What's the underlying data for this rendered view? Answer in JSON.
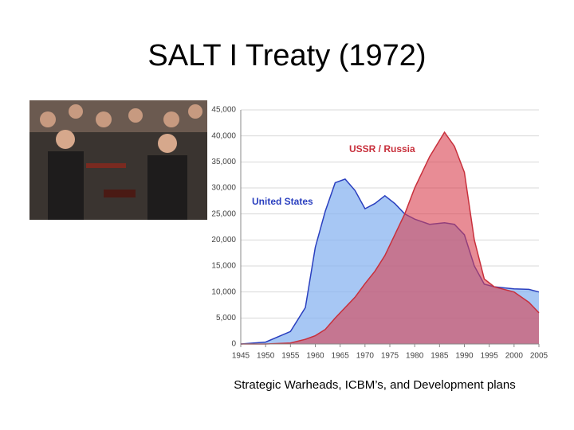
{
  "chart_data": {
    "type": "area",
    "title": "SALT I Treaty (1972)",
    "caption": "Strategic Warheads, ICBM’s, and Development plans",
    "x": [
      1945,
      1950,
      1955,
      1958,
      1960,
      1962,
      1964,
      1966,
      1968,
      1970,
      1972,
      1974,
      1976,
      1978,
      1980,
      1983,
      1986,
      1988,
      1990,
      1992,
      1994,
      1996,
      2000,
      2003,
      2005
    ],
    "series": [
      {
        "name": "United States",
        "color": "#2a3fbf",
        "fill": "#8ab4f0",
        "values": [
          2,
          370,
          2400,
          7000,
          18600,
          25500,
          31000,
          31700,
          29500,
          26000,
          27000,
          28500,
          27000,
          25000,
          24000,
          23000,
          23300,
          23000,
          21000,
          15000,
          11500,
          11000,
          10600,
          10500,
          10000
        ]
      },
      {
        "name": "USSR / Russia",
        "color": "#c8303c",
        "fill": "#d9404e",
        "values": [
          0,
          5,
          200,
          900,
          1600,
          2800,
          5000,
          7000,
          9000,
          11600,
          14000,
          17000,
          21000,
          25000,
          30000,
          36000,
          40700,
          38000,
          33000,
          20000,
          12500,
          11000,
          10000,
          8000,
          6000
        ]
      }
    ],
    "xlim": [
      1945,
      2005
    ],
    "xticks": [
      1945,
      1950,
      1955,
      1960,
      1965,
      1970,
      1975,
      1980,
      1985,
      1990,
      1995,
      2000,
      2005
    ],
    "ylim": [
      0,
      45000
    ],
    "yticks": [
      0,
      {
        "value": 5000,
        "label": "5,000"
      },
      {
        "value": 10000,
        "label": "10,000"
      },
      {
        "value": 15000,
        "label": "15,000"
      },
      {
        "value": 20000,
        "label": "20,000"
      },
      {
        "value": 25000,
        "label": "25,000"
      },
      {
        "value": 30000,
        "label": "30,000"
      },
      {
        "value": 35000,
        "label": "35,000"
      },
      {
        "value": 40000,
        "label": "40,000"
      },
      {
        "value": 45000,
        "label": "45,000"
      }
    ],
    "grid": true
  }
}
